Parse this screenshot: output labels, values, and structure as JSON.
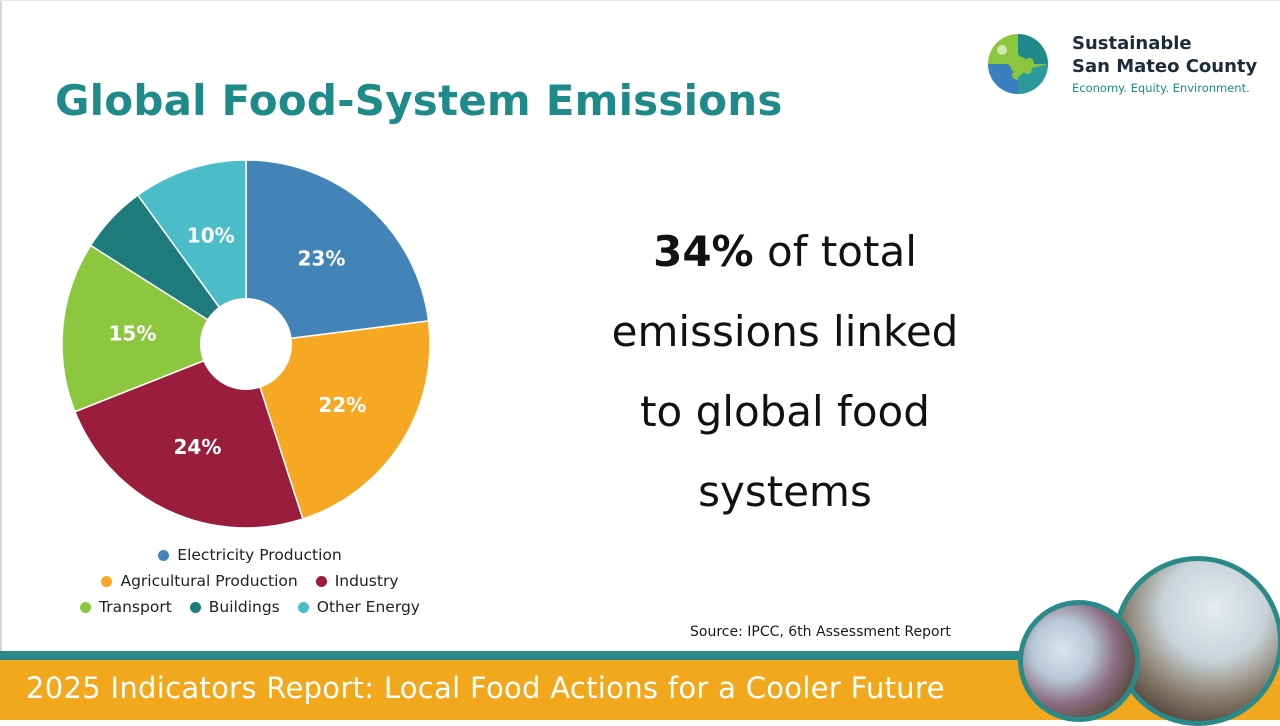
{
  "title": "Global Food-System Emissions",
  "logo": {
    "line1": "Sustainable",
    "line2": "San Mateo County",
    "tagline": "Economy. Equity. Environment.",
    "colors": {
      "green": "#8cc63f",
      "blue": "#3b7fc1",
      "teal": "#1f8a8a"
    }
  },
  "chart_data": {
    "type": "pie",
    "donut_hole": true,
    "categories": [
      "Electricity Production",
      "Agricultural Production",
      "Industry",
      "Transport",
      "Buildings",
      "Other Energy"
    ],
    "values": [
      23,
      22,
      24,
      15,
      6,
      10
    ],
    "labels": [
      "23%",
      "22%",
      "24%",
      "15%",
      "",
      "10%"
    ],
    "colors": [
      "#4384b8",
      "#f7a823",
      "#9b1d3e",
      "#8dc63f",
      "#1e7b7c",
      "#4bbdc8"
    ],
    "legend_placement": "bottom"
  },
  "statement": {
    "highlight": "34%",
    "line1_rest": " of total",
    "line2": "emissions linked",
    "line3": "to global food",
    "line4": "systems"
  },
  "source": "Source: IPCC, 6th  Assessment Report",
  "footer": {
    "text": "2025 Indicators Report: Local Food Actions for a Cooler Future",
    "colors": {
      "bar": "#f2a81d",
      "stripe": "#2a8a8a"
    }
  }
}
